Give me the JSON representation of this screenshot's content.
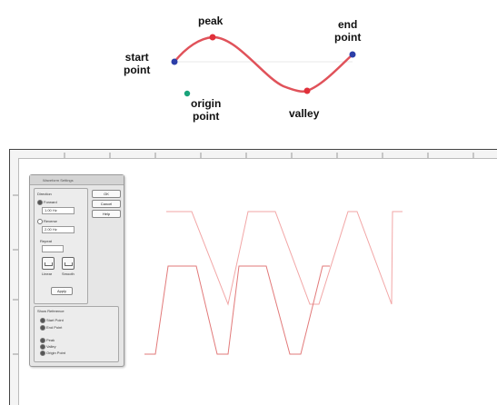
{
  "diagram": {
    "labels": {
      "peak": "peak",
      "start_point": "start\npoint",
      "end_point": "end\npoint",
      "origin_point": "origin\npoint",
      "valley": "valley"
    },
    "colors": {
      "curve": "#e0525a",
      "start_marker": "#2c3ea8",
      "end_marker": "#2c3ea8",
      "peak_marker": "#e0303a",
      "valley_marker": "#e0303a",
      "origin_marker": "#1aa37a",
      "baseline": "#e9e9e9"
    }
  },
  "app": {
    "panel": {
      "title": "Waveform Settings",
      "section_title": "Direction",
      "option_forward": "Forward",
      "field_forward": "1.00 Hz",
      "option_reverse": "Reverse",
      "field_reverse": "2.00 Hz",
      "section_repeat": "Repeat",
      "icon_labels": [
        "Linear",
        "Smooth"
      ],
      "apply_label": "Apply",
      "ok_label": "OK",
      "cancel_label": "Cancel",
      "help_label": "Help",
      "section_display": "Show Reference",
      "display_options": [
        "Start Point",
        "End Point"
      ],
      "display_options_2": [
        "Peak",
        "Valley",
        "Origin Point"
      ]
    },
    "colors": {
      "trace_primary": "#e27a7a",
      "trace_secondary": "#f2a6a6",
      "panel_bg": "#e6e6e6"
    }
  }
}
